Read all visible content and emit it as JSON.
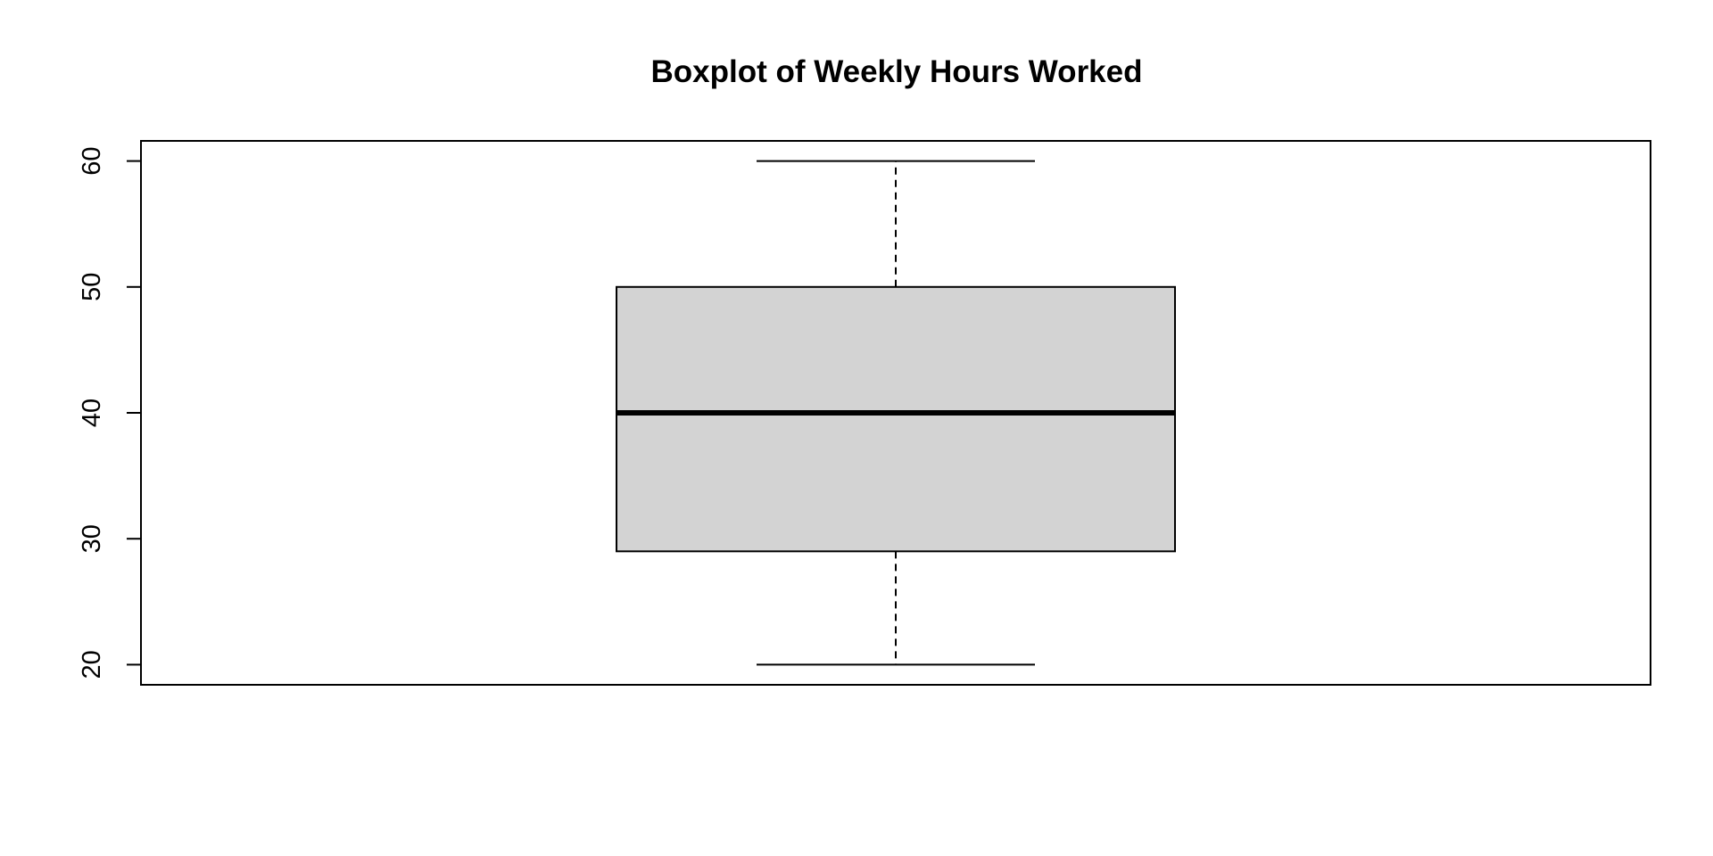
{
  "chart_data": {
    "type": "box",
    "title": "Boxplot of Weekly Hours Worked",
    "xlabel": "",
    "ylabel": "",
    "ylim": [
      18.4,
      61.6
    ],
    "yticks": [
      20,
      30,
      40,
      50,
      60
    ],
    "boxes": [
      {
        "min": 20,
        "q1": 29,
        "median": 40,
        "q3": 50,
        "max": 60
      }
    ],
    "grid": false,
    "legend": "none",
    "colors": {
      "box_fill": "#d3d3d3",
      "line": "#000000"
    }
  }
}
